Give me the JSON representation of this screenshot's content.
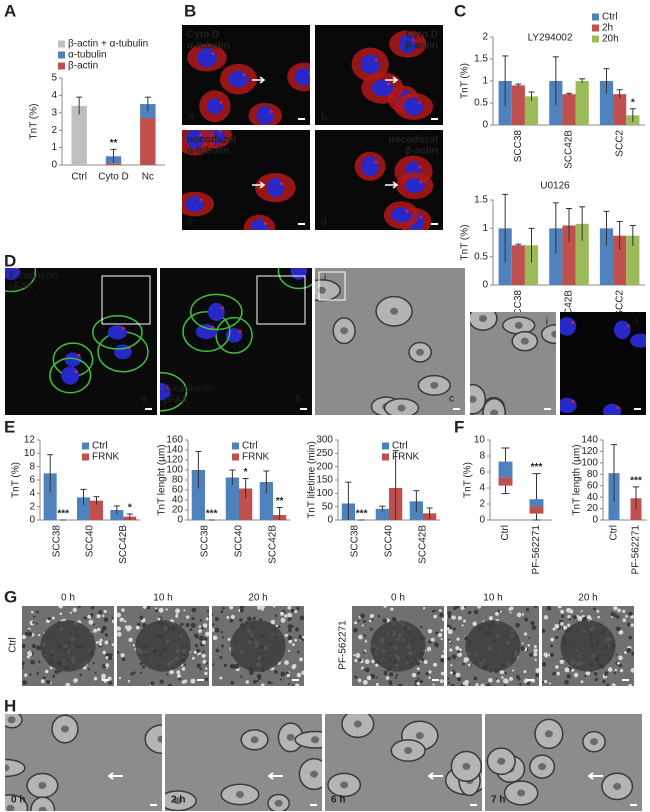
{
  "panels": [
    "A",
    "B",
    "C",
    "D",
    "E",
    "F",
    "G",
    "H"
  ],
  "chart_data": [
    {
      "type": "stacked_bar",
      "ylabel": "TnT (%)",
      "categories": [
        "Ctrl",
        "Cyto D",
        "Nc"
      ],
      "series": [
        {
          "name": "β-actin + α-tubulin",
          "color": "#bfbfbf",
          "values": [
            3.4,
            null,
            null
          ]
        },
        {
          "name": "α-tubulin",
          "color": "#4f81bd",
          "values": [
            null,
            0.4,
            0.8
          ]
        },
        {
          "name": "β-actin",
          "color": "#c0504d",
          "values": [
            null,
            0.1,
            2.7
          ]
        }
      ],
      "errors": [
        0.5,
        0.4,
        0.4
      ],
      "significance": [
        null,
        "**",
        null
      ],
      "ylim": [
        0,
        5
      ],
      "yticks": [
        0,
        1,
        2,
        3,
        4,
        5
      ],
      "legend": "upper left"
    },
    {
      "type": "grouped_bar",
      "title": "LY294002",
      "ylabel": "TnT (%)",
      "categories": [
        "SCC38",
        "SCC42B",
        "SCC2"
      ],
      "series": [
        {
          "name": "Ctrl",
          "color": "#4f81bd",
          "values": [
            1,
            1,
            1
          ],
          "errors": [
            0.57,
            0.55,
            0.28
          ],
          "significance": [
            null,
            null,
            null
          ]
        },
        {
          "name": "2h",
          "color": "#c0504d",
          "values": [
            0.9,
            0.7,
            0.7
          ],
          "errors": [
            0.03,
            0.02,
            0.1
          ],
          "significance": [
            null,
            null,
            null
          ]
        },
        {
          "name": "20h",
          "color": "#9bbb59",
          "values": [
            0.65,
            1,
            0.22
          ],
          "errors": [
            0.1,
            0.05,
            0.15
          ],
          "significance": [
            null,
            null,
            "*"
          ]
        }
      ],
      "ylim": [
        0,
        2
      ],
      "yticks": [
        0,
        0.5,
        1,
        1.5,
        2
      ],
      "legend": "upper right"
    },
    {
      "type": "grouped_bar",
      "title": "U0126",
      "ylabel": "TnT (%)",
      "categories": [
        "SCC38",
        "SCC42B",
        "SCC2"
      ],
      "series": [
        {
          "name": "Ctrl",
          "color": "#4f81bd",
          "values": [
            1,
            1,
            1
          ],
          "errors": [
            0.6,
            0.45,
            0.3
          ]
        },
        {
          "name": "2h",
          "color": "#c0504d",
          "values": [
            0.7,
            1.05,
            0.87
          ],
          "errors": [
            0.02,
            0.3,
            0.25
          ]
        },
        {
          "name": "20h",
          "color": "#9bbb59",
          "values": [
            0.7,
            1.08,
            0.87
          ],
          "errors": [
            0.3,
            0.3,
            0.18
          ]
        }
      ],
      "ylim": [
        0,
        1.5
      ],
      "yticks": [
        0,
        0.5,
        1,
        1.5
      ]
    },
    {
      "type": "grouped_bar",
      "ylabel": "TnT (%)",
      "categories": [
        "SCC38",
        "SCC40",
        "SCC42B"
      ],
      "series": [
        {
          "name": "Ctrl",
          "color": "#4f81bd",
          "values": [
            7,
            3.4,
            1.5
          ],
          "errors": [
            2.8,
            1.2,
            0.6
          ]
        },
        {
          "name": "FRNK",
          "color": "#c0504d",
          "values": [
            0,
            2.9,
            0.5
          ],
          "errors": [
            0,
            0.6,
            0.4
          ],
          "significance": [
            "***",
            null,
            "*"
          ]
        }
      ],
      "ylim": [
        0,
        12
      ],
      "yticks": [
        0,
        2,
        4,
        6,
        8,
        10,
        12
      ],
      "legend": "upper right"
    },
    {
      "type": "grouped_bar",
      "ylabel": "TnT lenght (µm)",
      "categories": [
        "SCC38",
        "SCC40",
        "SCC42B"
      ],
      "series": [
        {
          "name": "Ctrl",
          "color": "#4f81bd",
          "values": [
            100,
            85,
            76
          ],
          "errors": [
            37,
            15,
            22
          ]
        },
        {
          "name": "FRNK",
          "color": "#c0504d",
          "values": [
            0,
            63,
            10
          ],
          "errors": [
            0,
            20,
            15
          ],
          "significance": [
            "***",
            "*",
            "**"
          ]
        }
      ],
      "ylim": [
        0,
        160
      ],
      "yticks": [
        0,
        20,
        40,
        60,
        80,
        100,
        120,
        140,
        160
      ],
      "legend": "upper right"
    },
    {
      "type": "grouped_bar",
      "ylabel": "TnT lifetime (min)",
      "categories": [
        "SCC38",
        "SCC40",
        "SCC42B"
      ],
      "series": [
        {
          "name": "Ctrl",
          "color": "#4f81bd",
          "values": [
            62,
            42,
            70
          ],
          "errors": [
            80,
            10,
            40
          ]
        },
        {
          "name": "FRNK",
          "color": "#c0504d",
          "values": [
            0,
            120,
            25
          ],
          "errors": [
            0,
            140,
            20
          ],
          "significance": [
            "***",
            null,
            null
          ]
        }
      ],
      "ylim": [
        0,
        300
      ],
      "yticks": [
        0,
        50,
        100,
        150,
        200,
        250,
        300
      ],
      "legend": "upper right"
    },
    {
      "type": "box",
      "ylabel": "TnT (%)",
      "categories": [
        "Ctrl",
        "PF-562271"
      ],
      "boxes": [
        {
          "min": 3.3,
          "q1": 4.3,
          "median": 5.3,
          "q3": 7.3,
          "max": 9
        },
        {
          "min": 0,
          "q1": 0.8,
          "median": 1.7,
          "q3": 2.6,
          "max": 5.8
        }
      ],
      "colors": [
        "#c0504d",
        "#4f81bd"
      ],
      "significance": [
        null,
        "***"
      ],
      "ylim": [
        0,
        10
      ],
      "yticks": [
        0,
        2,
        4,
        6,
        8,
        10
      ]
    },
    {
      "type": "bar",
      "ylabel": "TnT length (µm)",
      "categories": [
        "Ctrl",
        "PF-562271"
      ],
      "values": [
        82,
        38
      ],
      "errors": [
        50,
        20
      ],
      "colors": [
        "#4f81bd",
        "#c0504d"
      ],
      "significance": [
        null,
        "***"
      ],
      "ylim": [
        0,
        140
      ],
      "yticks": [
        0,
        20,
        40,
        60,
        80,
        100,
        120,
        140
      ]
    }
  ],
  "micrographs": {
    "B": [
      {
        "lines": [
          "Cyto D",
          "α-tubulin"
        ],
        "letter": "a"
      },
      {
        "lines": [
          "Cyto D",
          "β-actin"
        ],
        "letter": "b"
      },
      {
        "lines": [
          "nocodazol",
          "α-tubulin"
        ],
        "letter": "c"
      },
      {
        "lines": [
          "nocodazol",
          "β-actin"
        ],
        "letter": "d"
      }
    ],
    "D": [
      {
        "lines": [
          "E-cadherin",
          "pFAK"
        ],
        "letter": "a"
      },
      {
        "lines": [
          "E-cadherin",
          "pFAK"
        ],
        "letter": "b"
      },
      {
        "inset": "i",
        "letter": "c"
      },
      {
        "inset": "i"
      },
      {
        "inset": "i"
      }
    ],
    "G": {
      "conditions": [
        "Ctrl",
        "PF-562271"
      ],
      "times": [
        "0 h",
        "10 h",
        "20 h"
      ]
    },
    "H": [
      "0 h",
      "2 h",
      "6 h",
      "7 h"
    ]
  }
}
